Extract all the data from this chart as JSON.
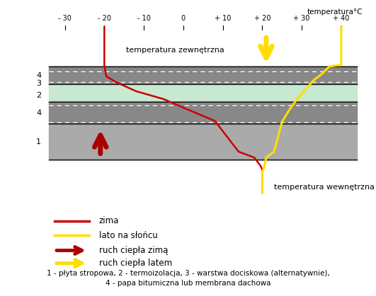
{
  "title": "temperatura°C",
  "xlabel_ext": "temperatura zewnętrzna",
  "xlabel_int": "temperatura wewnętrzna",
  "xmin": -35,
  "xmax": 45,
  "xticks": [
    -30,
    -20,
    -10,
    0,
    10,
    20,
    30,
    40
  ],
  "xtick_labels": [
    "- 30",
    "- 20",
    "- 10",
    "0",
    "+ 10",
    "+ 20",
    "+ 30",
    "+ 40"
  ],
  "background_color": "#ffffff",
  "red_color": "#cc0000",
  "yellow_color": "#ffdd00",
  "dark_red_color": "#aa0000",
  "gray_dark": "#888888",
  "gray_slab": "#aaaaaa",
  "green_insul": "#c8e8d0",
  "label_zima": "zima",
  "label_lato": "lato na słońcu",
  "label_ruch_zima": "ruch ciepła zimą",
  "label_ruch_latem": "ruch ciepła latem",
  "note": "1 - płyta stropowa, 2 - termoizolacja, 3 - warstwa dociskowa (alternatywnie),\n4 - papa bitumiczna lub membrana dachowa"
}
